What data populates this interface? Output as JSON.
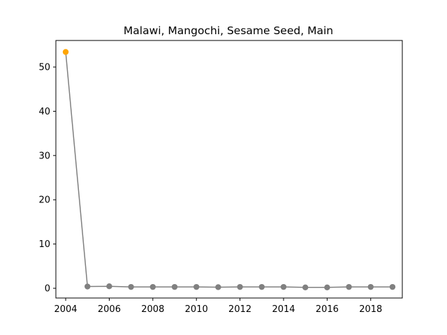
{
  "chart_data": {
    "type": "line",
    "title": "Malawi, Mangochi, Sesame Seed, Main",
    "xlabel": "",
    "ylabel": "",
    "xlim": [
      2003.55,
      2019.45
    ],
    "ylim": [
      -2.2,
      56.0
    ],
    "x_ticks": [
      2004,
      2006,
      2008,
      2010,
      2012,
      2014,
      2016,
      2018
    ],
    "y_ticks": [
      0,
      10,
      20,
      30,
      40,
      50
    ],
    "grid": false,
    "legend": "none",
    "line_color": "#808080",
    "point_color": "#808080",
    "highlight_color": "#ffa500",
    "highlight_index": 0,
    "series": [
      {
        "x": [
          2004,
          2005,
          2006,
          2007,
          2008,
          2009,
          2010,
          2011,
          2012,
          2013,
          2014,
          2015,
          2016,
          2017,
          2018,
          2019
        ],
        "values": [
          53.4,
          0.4,
          0.45,
          0.3,
          0.3,
          0.3,
          0.3,
          0.25,
          0.3,
          0.3,
          0.3,
          0.2,
          0.2,
          0.3,
          0.3,
          0.3
        ]
      }
    ]
  }
}
